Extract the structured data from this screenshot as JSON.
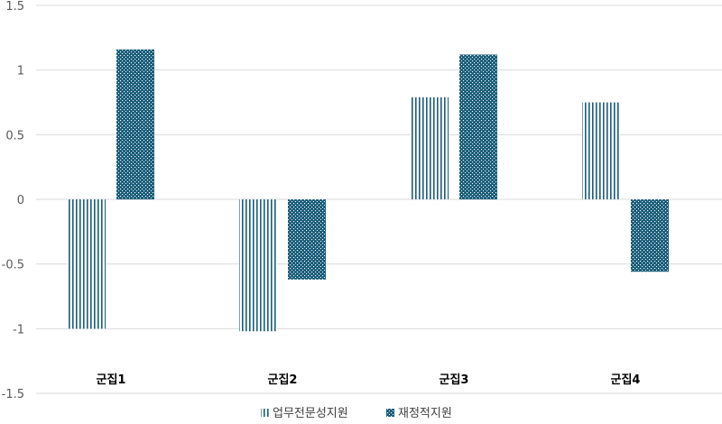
{
  "chart_data": {
    "type": "bar",
    "categories": [
      "군집1",
      "군집2",
      "군집3",
      "군집4"
    ],
    "series": [
      {
        "name": "업무전문성지원",
        "values": [
          -1.0,
          -1.02,
          0.79,
          0.75
        ],
        "pattern": "vertical-lines",
        "color": "#1b5e7a"
      },
      {
        "name": "재정적지원",
        "values": [
          1.16,
          -0.62,
          1.12,
          -0.56
        ],
        "pattern": "dots",
        "color": "#1b5e7a"
      }
    ],
    "yticks": [
      "1.5",
      "1",
      "0.5",
      "0",
      "-0.5",
      "-1",
      "-1.5"
    ],
    "ylim": [
      -1.5,
      1.5
    ],
    "grid": true,
    "legend": "bottom-center",
    "title": "",
    "xlabel": "",
    "ylabel": ""
  }
}
